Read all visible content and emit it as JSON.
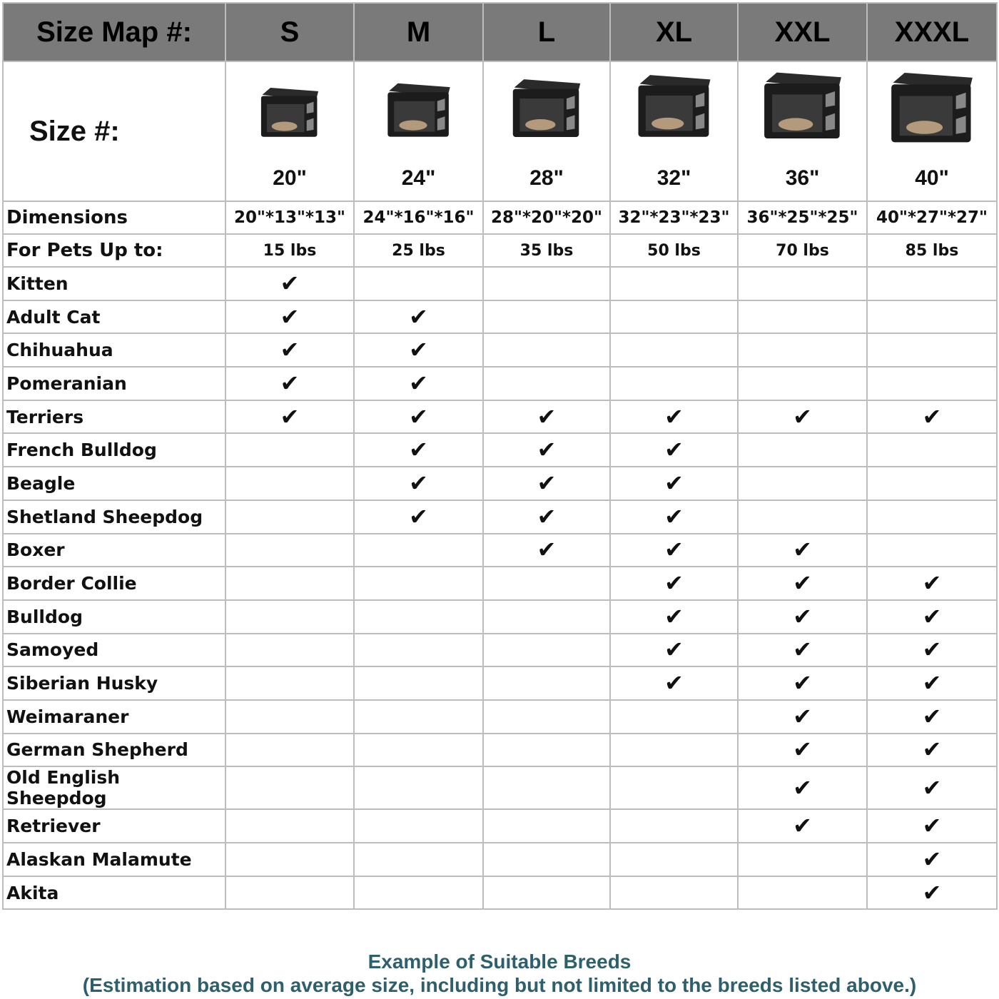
{
  "header": {
    "label": "Size Map #:",
    "sizes": [
      "S",
      "M",
      "L",
      "XL",
      "XXL",
      "XXXL"
    ]
  },
  "size_row": {
    "label": "Size #:",
    "values": [
      "20\"",
      "24\"",
      "28\"",
      "32\"",
      "36\"",
      "40\""
    ],
    "image_icon": "pet-crate-image"
  },
  "dimensions": {
    "label": "Dimensions",
    "values": [
      "20\"*13\"*13\"",
      "24\"*16\"*16\"",
      "28\"*20\"*20\"",
      "32\"*23\"*23\"",
      "36\"*25\"*25\"",
      "40\"*27\"*27\""
    ]
  },
  "pets": {
    "label": "For Pets Up to:",
    "values": [
      "15 lbs",
      "25 lbs",
      "35 lbs",
      "50 lbs",
      "70 lbs",
      "85 lbs"
    ]
  },
  "check_glyph": "✔",
  "breeds": [
    {
      "name": "Kitten",
      "fits": [
        1,
        0,
        0,
        0,
        0,
        0
      ]
    },
    {
      "name": "Adult Cat",
      "fits": [
        1,
        1,
        0,
        0,
        0,
        0
      ]
    },
    {
      "name": "Chihuahua",
      "fits": [
        1,
        1,
        0,
        0,
        0,
        0
      ]
    },
    {
      "name": "Pomeranian",
      "fits": [
        1,
        1,
        0,
        0,
        0,
        0
      ]
    },
    {
      "name": "Terriers",
      "fits": [
        1,
        1,
        1,
        1,
        1,
        1
      ]
    },
    {
      "name": "French Bulldog",
      "fits": [
        0,
        1,
        1,
        1,
        0,
        0
      ]
    },
    {
      "name": "Beagle",
      "fits": [
        0,
        1,
        1,
        1,
        0,
        0
      ]
    },
    {
      "name": "Shetland Sheepdog",
      "fits": [
        0,
        1,
        1,
        1,
        0,
        0
      ]
    },
    {
      "name": "Boxer",
      "fits": [
        0,
        0,
        1,
        1,
        1,
        0
      ]
    },
    {
      "name": "Border Collie",
      "fits": [
        0,
        0,
        0,
        1,
        1,
        1
      ]
    },
    {
      "name": "Bulldog",
      "fits": [
        0,
        0,
        0,
        1,
        1,
        1
      ]
    },
    {
      "name": "Samoyed",
      "fits": [
        0,
        0,
        0,
        1,
        1,
        1
      ]
    },
    {
      "name": "Siberian Husky",
      "fits": [
        0,
        0,
        0,
        1,
        1,
        1
      ]
    },
    {
      "name": "Weimaraner",
      "fits": [
        0,
        0,
        0,
        0,
        1,
        1
      ]
    },
    {
      "name": "German Shepherd",
      "fits": [
        0,
        0,
        0,
        0,
        1,
        1
      ]
    },
    {
      "name": "Old English Sheepdog",
      "fits": [
        0,
        0,
        0,
        0,
        1,
        1
      ]
    },
    {
      "name": "Retriever",
      "fits": [
        0,
        0,
        0,
        0,
        1,
        1
      ]
    },
    {
      "name": "Alaskan Malamute",
      "fits": [
        0,
        0,
        0,
        0,
        0,
        1
      ]
    },
    {
      "name": "Akita",
      "fits": [
        0,
        0,
        0,
        0,
        0,
        1
      ]
    }
  ],
  "footer": {
    "title": "Example of Suitable Breeds",
    "note": "(Estimation based on average size, including but not limited to the breeds listed above.)"
  },
  "colors": {
    "header_bg": "#7a7a7a",
    "grid": "#bdbdbd",
    "footer_text": "#2e5f6d"
  }
}
